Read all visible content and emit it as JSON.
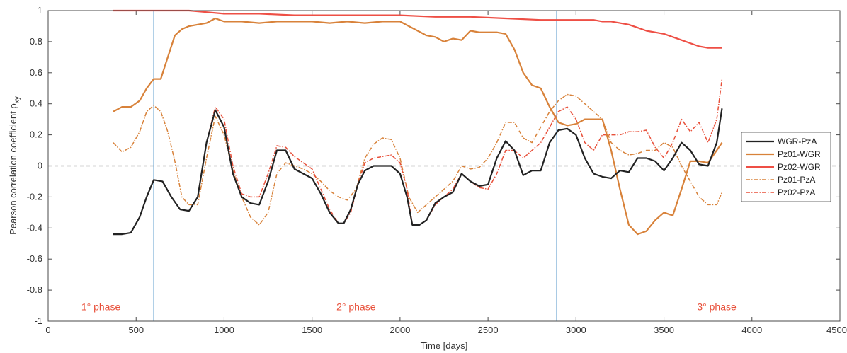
{
  "chart_data": {
    "type": "line",
    "xlabel": "Time [days]",
    "ylabel": "Pearson correlation coefficient ρ",
    "ylabel_sub": "xy",
    "xlim": [
      0,
      4500
    ],
    "ylim": [
      -1,
      1
    ],
    "xticks": [
      "0",
      "500",
      "1000",
      "1500",
      "2000",
      "2500",
      "3000",
      "3500",
      "4000",
      "4500"
    ],
    "yticks": [
      "-1",
      "-0.8",
      "-0.6",
      "-0.4",
      "-0.2",
      "0",
      "0.2",
      "0.4",
      "0.6",
      "0.8",
      "1"
    ],
    "zero_line": 0,
    "phase_boundaries": [
      600,
      2890
    ],
    "phases": [
      {
        "label": "1° phase",
        "x": 300,
        "y": -0.93
      },
      {
        "label": "2° phase",
        "x": 1750,
        "y": -0.93
      },
      {
        "label": "3° phase",
        "x": 3800,
        "y": -0.93
      }
    ],
    "legend_position": "right",
    "series": [
      {
        "name": "WGR-PzA",
        "color": "#222222",
        "style": "solid",
        "x": [
          370,
          420,
          470,
          520,
          560,
          600,
          650,
          700,
          750,
          800,
          850,
          900,
          950,
          1000,
          1050,
          1100,
          1150,
          1200,
          1250,
          1300,
          1350,
          1400,
          1450,
          1500,
          1550,
          1600,
          1650,
          1680,
          1720,
          1760,
          1800,
          1850,
          1900,
          1950,
          2000,
          2040,
          2070,
          2110,
          2150,
          2200,
          2250,
          2300,
          2350,
          2400,
          2450,
          2500,
          2550,
          2600,
          2650,
          2700,
          2750,
          2800,
          2850,
          2900,
          2950,
          3000,
          3050,
          3100,
          3150,
          3200,
          3250,
          3300,
          3350,
          3400,
          3450,
          3500,
          3550,
          3600,
          3650,
          3700,
          3750,
          3800,
          3830
        ],
        "values": [
          -0.44,
          -0.44,
          -0.43,
          -0.33,
          -0.2,
          -0.09,
          -0.1,
          -0.2,
          -0.28,
          -0.29,
          -0.2,
          0.15,
          0.36,
          0.25,
          -0.05,
          -0.2,
          -0.24,
          -0.25,
          -0.1,
          0.1,
          0.1,
          -0.02,
          -0.05,
          -0.08,
          -0.18,
          -0.3,
          -0.37,
          -0.37,
          -0.28,
          -0.12,
          -0.03,
          0.0,
          0.0,
          0.0,
          -0.05,
          -0.2,
          -0.38,
          -0.38,
          -0.35,
          -0.24,
          -0.2,
          -0.17,
          -0.05,
          -0.1,
          -0.13,
          -0.12,
          0.05,
          0.16,
          0.1,
          -0.06,
          -0.03,
          -0.03,
          0.15,
          0.23,
          0.24,
          0.2,
          0.05,
          -0.05,
          -0.07,
          -0.08,
          -0.03,
          -0.04,
          0.05,
          0.05,
          0.03,
          -0.03,
          0.05,
          0.15,
          0.1,
          0.01,
          0.0,
          0.15,
          0.37
        ]
      },
      {
        "name": "Pz01-WGR",
        "color": "#d8823a",
        "style": "solid",
        "x": [
          370,
          420,
          470,
          520,
          560,
          600,
          640,
          680,
          720,
          760,
          800,
          850,
          900,
          950,
          1000,
          1100,
          1200,
          1300,
          1400,
          1500,
          1600,
          1700,
          1800,
          1900,
          2000,
          2050,
          2100,
          2150,
          2200,
          2250,
          2300,
          2350,
          2400,
          2450,
          2500,
          2550,
          2600,
          2650,
          2700,
          2750,
          2800,
          2850,
          2900,
          2950,
          3000,
          3050,
          3100,
          3150,
          3200,
          3250,
          3300,
          3350,
          3400,
          3450,
          3500,
          3550,
          3600,
          3650,
          3700,
          3750,
          3800,
          3830
        ],
        "values": [
          0.35,
          0.38,
          0.38,
          0.42,
          0.5,
          0.56,
          0.56,
          0.7,
          0.84,
          0.88,
          0.9,
          0.91,
          0.92,
          0.95,
          0.93,
          0.93,
          0.92,
          0.93,
          0.93,
          0.93,
          0.92,
          0.93,
          0.92,
          0.93,
          0.93,
          0.9,
          0.87,
          0.84,
          0.83,
          0.8,
          0.82,
          0.81,
          0.87,
          0.86,
          0.86,
          0.86,
          0.85,
          0.75,
          0.6,
          0.52,
          0.5,
          0.38,
          0.28,
          0.26,
          0.27,
          0.3,
          0.3,
          0.3,
          0.1,
          -0.15,
          -0.38,
          -0.44,
          -0.42,
          -0.35,
          -0.3,
          -0.32,
          -0.15,
          0.03,
          0.03,
          0.02,
          0.1,
          0.15
        ]
      },
      {
        "name": "Pz02-WGR",
        "color": "#ee4f45",
        "style": "solid",
        "x": [
          370,
          500,
          600,
          700,
          800,
          900,
          1000,
          1200,
          1400,
          1600,
          1800,
          2000,
          2200,
          2400,
          2600,
          2800,
          2900,
          3000,
          3050,
          3100,
          3150,
          3200,
          3250,
          3300,
          3350,
          3400,
          3450,
          3500,
          3550,
          3600,
          3650,
          3700,
          3750,
          3800,
          3830
        ],
        "values": [
          1.0,
          1.0,
          1.0,
          1.0,
          1.0,
          0.99,
          0.98,
          0.98,
          0.97,
          0.97,
          0.97,
          0.97,
          0.96,
          0.96,
          0.95,
          0.94,
          0.94,
          0.94,
          0.94,
          0.94,
          0.93,
          0.93,
          0.92,
          0.91,
          0.89,
          0.87,
          0.86,
          0.85,
          0.83,
          0.81,
          0.79,
          0.77,
          0.76,
          0.76,
          0.76
        ]
      },
      {
        "name": "Pz01-PzA",
        "color": "#d8823a",
        "style": "dashdot",
        "x": [
          370,
          420,
          470,
          520,
          560,
          600,
          640,
          680,
          720,
          760,
          800,
          850,
          900,
          950,
          1000,
          1050,
          1100,
          1150,
          1200,
          1250,
          1300,
          1350,
          1400,
          1450,
          1500,
          1550,
          1600,
          1650,
          1700,
          1750,
          1800,
          1850,
          1900,
          1950,
          2000,
          2050,
          2100,
          2150,
          2200,
          2250,
          2300,
          2350,
          2400,
          2450,
          2500,
          2550,
          2600,
          2650,
          2700,
          2750,
          2800,
          2850,
          2900,
          2950,
          3000,
          3050,
          3100,
          3150,
          3200,
          3250,
          3300,
          3350,
          3400,
          3450,
          3500,
          3550,
          3600,
          3650,
          3700,
          3750,
          3800,
          3830
        ],
        "values": [
          0.15,
          0.09,
          0.12,
          0.22,
          0.35,
          0.39,
          0.35,
          0.22,
          0.03,
          -0.2,
          -0.25,
          -0.25,
          0.05,
          0.32,
          0.2,
          -0.03,
          -0.2,
          -0.33,
          -0.38,
          -0.3,
          -0.05,
          0.02,
          0.0,
          -0.02,
          -0.05,
          -0.1,
          -0.16,
          -0.2,
          -0.22,
          -0.15,
          0.05,
          0.14,
          0.18,
          0.17,
          0.05,
          -0.2,
          -0.3,
          -0.25,
          -0.2,
          -0.15,
          -0.1,
          0.0,
          -0.02,
          -0.01,
          0.05,
          0.15,
          0.28,
          0.28,
          0.18,
          0.15,
          0.25,
          0.35,
          0.42,
          0.46,
          0.45,
          0.4,
          0.35,
          0.3,
          0.15,
          0.1,
          0.07,
          0.08,
          0.1,
          0.1,
          0.15,
          0.12,
          0.0,
          -0.1,
          -0.2,
          -0.25,
          -0.25,
          -0.17
        ]
      },
      {
        "name": "Pz02-PzA",
        "color": "#e8503a",
        "style": "dashdot",
        "x": [
          370,
          420,
          470,
          520,
          560,
          600,
          650,
          700,
          750,
          800,
          850,
          900,
          950,
          1000,
          1050,
          1100,
          1150,
          1200,
          1250,
          1300,
          1350,
          1400,
          1450,
          1500,
          1550,
          1600,
          1650,
          1680,
          1720,
          1760,
          1800,
          1850,
          1900,
          1950,
          2000,
          2040,
          2070,
          2110,
          2150,
          2200,
          2250,
          2300,
          2350,
          2400,
          2450,
          2500,
          2550,
          2600,
          2650,
          2700,
          2750,
          2800,
          2850,
          2900,
          2950,
          3000,
          3050,
          3100,
          3150,
          3200,
          3250,
          3300,
          3350,
          3400,
          3450,
          3500,
          3550,
          3600,
          3650,
          3700,
          3750,
          3800,
          3830
        ],
        "values": [
          -0.44,
          -0.44,
          -0.43,
          -0.33,
          -0.2,
          -0.09,
          -0.1,
          -0.2,
          -0.28,
          -0.29,
          -0.2,
          0.15,
          0.38,
          0.3,
          0.0,
          -0.18,
          -0.2,
          -0.2,
          -0.05,
          0.13,
          0.12,
          0.06,
          0.02,
          -0.02,
          -0.15,
          -0.28,
          -0.37,
          -0.37,
          -0.3,
          -0.12,
          0.02,
          0.05,
          0.06,
          0.07,
          0.02,
          -0.15,
          -0.38,
          -0.38,
          -0.35,
          -0.25,
          -0.2,
          -0.15,
          -0.05,
          -0.1,
          -0.14,
          -0.15,
          -0.05,
          0.1,
          0.1,
          0.05,
          0.1,
          0.15,
          0.25,
          0.35,
          0.38,
          0.3,
          0.15,
          0.1,
          0.2,
          0.2,
          0.2,
          0.22,
          0.22,
          0.23,
          0.12,
          0.05,
          0.15,
          0.3,
          0.22,
          0.28,
          0.15,
          0.3,
          0.56
        ]
      }
    ]
  }
}
